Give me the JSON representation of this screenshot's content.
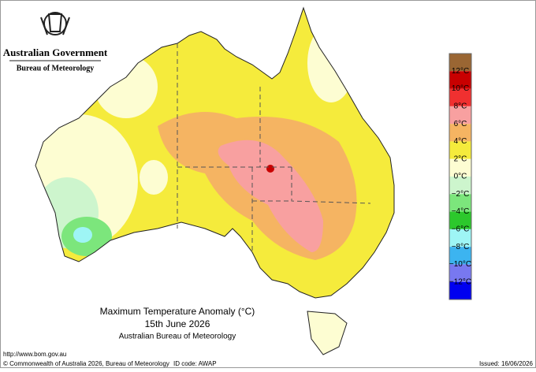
{
  "header": {
    "government": "Australian Government",
    "agency": "Bureau of Meteorology"
  },
  "title": {
    "line1": "Maximum Temperature Anomaly (°C)",
    "line2": "15th June 2026",
    "line3": "Australian Bureau of Meteorology"
  },
  "legend": {
    "colors": [
      "#9a6633",
      "#c80000",
      "#f03030",
      "#f8a0a0",
      "#f5b462",
      "#f5eb3c",
      "#fdfdd2",
      "#cdf5cd",
      "#7ce67c",
      "#2cc82c",
      "#9ef5f5",
      "#3cb4f0",
      "#7878f0",
      "#0000f0"
    ],
    "labels": [
      "12°C",
      "10°C",
      "8°C",
      "6°C",
      "4°C",
      "2°C",
      "0°C",
      "−2°C",
      "−4°C",
      "−6°C",
      "−8°C",
      "−10°C",
      "−12°C"
    ]
  },
  "footer": {
    "url": "http://www.bom.gov.au",
    "copyright": "© Commonwealth of Australia 2026, Bureau of Meteorology",
    "id_code": "ID code: AWAP",
    "issued": "Issued: 16/06/2026"
  }
}
